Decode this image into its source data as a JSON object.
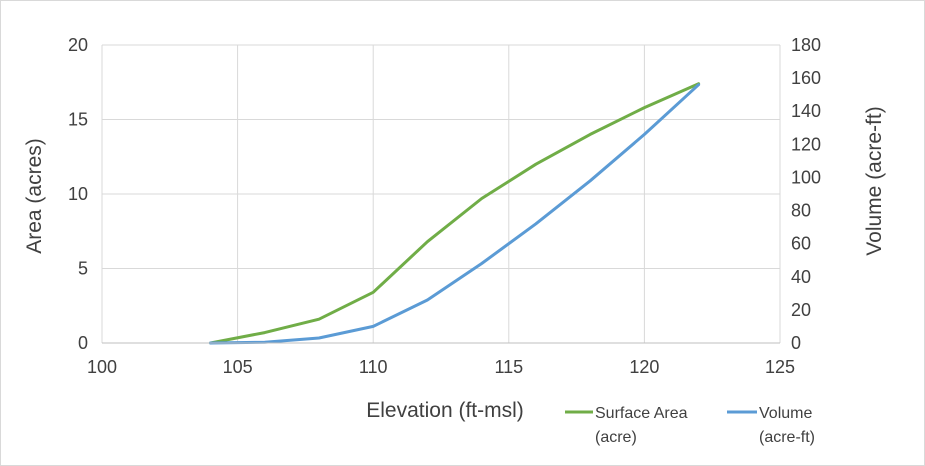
{
  "chart_data": {
    "type": "line",
    "title": "",
    "xlabel": "Elevation (ft-msl)",
    "ylabel_left": "Area (acres)",
    "ylabel_right": "Volume (acre-ft)",
    "xlim": [
      100,
      125
    ],
    "ylim_left": [
      0,
      20
    ],
    "ylim_right": [
      0,
      180
    ],
    "x_ticks": [
      "100",
      "105",
      "110",
      "115",
      "120",
      "125"
    ],
    "y_left_ticks": [
      "0",
      "5",
      "10",
      "15",
      "20"
    ],
    "y_right_ticks": [
      "0",
      "20",
      "40",
      "60",
      "80",
      "100",
      "120",
      "140",
      "160",
      "180"
    ],
    "grid": true,
    "legend_position": "bottom-right",
    "series": [
      {
        "name": "Surface Area (acre)",
        "axis": "left",
        "color": "#70ad47",
        "x": [
          104,
          106,
          108,
          110,
          112,
          114,
          116,
          118,
          120,
          122
        ],
        "values": [
          0,
          0.7,
          1.6,
          3.4,
          6.8,
          9.7,
          12.0,
          14.0,
          15.8,
          17.4
        ]
      },
      {
        "name": "Volume (acre-ft)",
        "axis": "right",
        "color": "#5b9bd5",
        "x": [
          104,
          106,
          108,
          110,
          112,
          114,
          116,
          118,
          120,
          122
        ],
        "values": [
          0,
          0.5,
          3,
          10,
          26,
          48,
          72,
          98,
          126,
          156
        ]
      }
    ],
    "legend": [
      {
        "line1": "Surface Area",
        "line2": "(acre)",
        "color": "#70ad47"
      },
      {
        "line1": "Volume",
        "line2": "(acre-ft)",
        "color": "#5b9bd5"
      }
    ]
  }
}
